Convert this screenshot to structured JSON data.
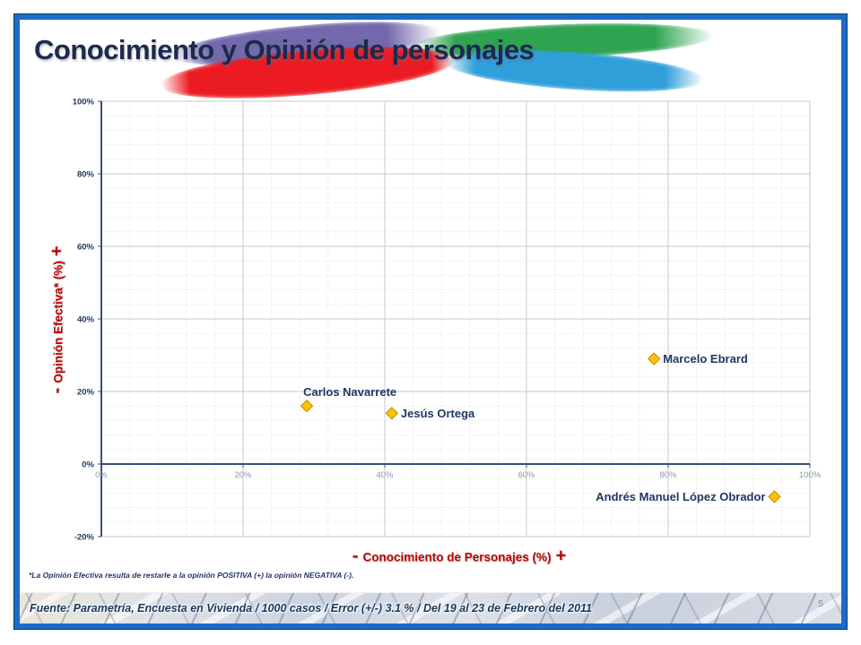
{
  "slide": {
    "title": "Conocimiento y Opinión de personajes",
    "page_number": "5",
    "footnote": "*La Opinión Efectiva resulta de restarle a la opinión POSITIVA (+) la opinión NEGATIVA (-).",
    "source_footer": "Fuente: Parametría, Encuesta en Vivienda / 1000 casos / Error (+/-) 3.1 % / Del 19 al 23 de Febrero del 2011"
  },
  "chart_data": {
    "type": "scatter",
    "title": "Conocimiento y Opinión de personajes",
    "xlabel": "- Conocimiento de Personajes (%) +",
    "ylabel": "- Opinión Efectiva* (%) +",
    "xlim": [
      0,
      100
    ],
    "ylim": [
      -20,
      100
    ],
    "x_major_unit": 20,
    "y_major_unit": 20,
    "x_minor_unit": 4,
    "y_minor_unit": 4,
    "grid": "major solid, minor dotted",
    "legend_position": "none",
    "marker": "diamond",
    "x_ticks": [
      {
        "v": 0,
        "label": "0%"
      },
      {
        "v": 20,
        "label": "20%"
      },
      {
        "v": 40,
        "label": "40%"
      },
      {
        "v": 60,
        "label": "60%"
      },
      {
        "v": 80,
        "label": "80%"
      },
      {
        "v": 100,
        "label": "100%"
      }
    ],
    "y_ticks": [
      {
        "v": -20,
        "label": "-20%"
      },
      {
        "v": 0,
        "label": "0%"
      },
      {
        "v": 20,
        "label": "20%"
      },
      {
        "v": 40,
        "label": "40%"
      },
      {
        "v": 60,
        "label": "60%"
      },
      {
        "v": 80,
        "label": "80%"
      },
      {
        "v": 100,
        "label": "100%"
      }
    ],
    "axis_titles": {
      "x": {
        "minus": "-",
        "label": "Conocimiento de Personajes (%)",
        "plus": "+"
      },
      "y": {
        "minus": "-",
        "label": "Opinión Efectiva* (%)",
        "plus": "+"
      }
    },
    "points": [
      {
        "name": "Marcelo Ebrard",
        "x": 78,
        "y": 29,
        "label_side": "right"
      },
      {
        "name": "Carlos Navarrete",
        "x": 29,
        "y": 16,
        "label_side": "above"
      },
      {
        "name": "Jesús Ortega",
        "x": 41,
        "y": 14,
        "label_side": "right"
      },
      {
        "name": "Andrés Manuel López Obrador",
        "x": 95,
        "y": -9,
        "label_side": "left"
      }
    ]
  },
  "colors": {
    "navy_text": "#1F3864",
    "title_navy": "#1B2A4E",
    "red_accent": "#C00000",
    "marker_fill": "#FFC000",
    "marker_stroke": "#B98A00",
    "gray_tick": "#9096A3",
    "grid_major": "#C9C9C9",
    "grid_minor": "#E2E2E2",
    "axis_line": "#3A4E7A",
    "frame_blue": "#1B6CC8",
    "frame_dark": "#16365C",
    "swoosh_purple": "#7468AD",
    "swoosh_red": "#EC1B23",
    "swoosh_green": "#2EA350",
    "swoosh_blue": "#2E9FD9"
  }
}
